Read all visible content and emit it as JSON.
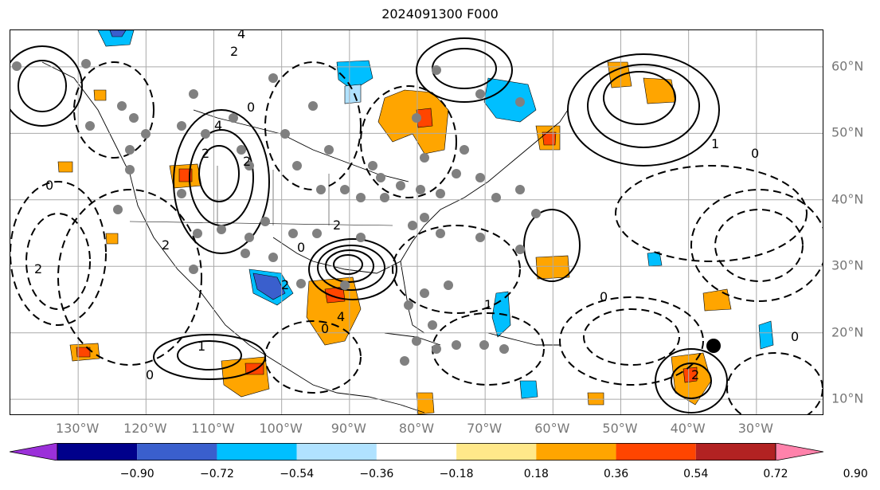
{
  "title": "2024091300 F000",
  "lat_labels": [
    {
      "text": "60°N",
      "lat": 60
    },
    {
      "text": "50°N",
      "lat": 50
    },
    {
      "text": "40°N",
      "lat": 40
    },
    {
      "text": "30°N",
      "lat": 30
    },
    {
      "text": "20°N",
      "lat": 20
    },
    {
      "text": "10°N",
      "lat": 10
    }
  ],
  "lon_labels": [
    {
      "text": "130°W",
      "lon": -130
    },
    {
      "text": "120°W",
      "lon": -120
    },
    {
      "text": "110°W",
      "lon": -110
    },
    {
      "text": "100°W",
      "lon": -100
    },
    {
      "text": "90°W",
      "lon": -90
    },
    {
      "text": "80°W",
      "lon": -80
    },
    {
      "text": "70°W",
      "lon": -70
    },
    {
      "text": "60°W",
      "lon": -60
    },
    {
      "text": "50°W",
      "lon": -50
    },
    {
      "text": "40°W",
      "lon": -40
    },
    {
      "text": "30°W",
      "lon": -30
    }
  ],
  "colorbar": {
    "ticks": [
      "−0.90",
      "−0.72",
      "−0.54",
      "−0.36",
      "−0.18",
      "0.18",
      "0.36",
      "0.54",
      "0.72",
      "0.90"
    ],
    "colors": [
      "#9b30d9",
      "#00008b",
      "#3a5fcd",
      "#00bfff",
      "#b0e2ff",
      "#ffffff",
      "#ffe88a",
      "#ffa500",
      "#ff4500",
      "#b22222",
      "#ff82ab"
    ]
  },
  "contour_labels": [
    "4",
    "2",
    "0",
    "2",
    "4",
    "2",
    "0",
    "2",
    "4",
    "2",
    "0",
    "2",
    "0",
    "1",
    "0",
    "2",
    "1",
    "0",
    "2",
    "0",
    "1",
    "0"
  ]
}
